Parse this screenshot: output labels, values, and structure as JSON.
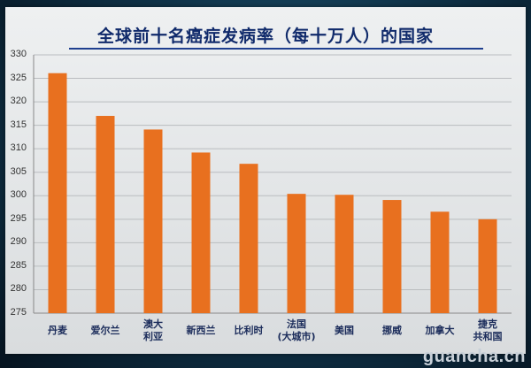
{
  "chart_data": {
    "type": "bar",
    "title": "全球前十名癌症发病率（每十万人）的国家",
    "categories": [
      "丹麦",
      "爱尔兰",
      "澳大\n利亚",
      "新西兰",
      "比利时",
      "法国\n(大城市)",
      "美国",
      "挪威",
      "加拿大",
      "捷克\n共和国"
    ],
    "values": [
      326.1,
      317.0,
      314.1,
      309.2,
      306.8,
      300.4,
      300.2,
      299.1,
      296.6,
      295.0
    ],
    "ylim": [
      275,
      330
    ],
    "yticks": [
      275,
      280,
      285,
      290,
      295,
      300,
      305,
      310,
      315,
      320,
      325,
      330
    ],
    "grid": true,
    "bar_color": "#e8701f"
  },
  "watermark": "guancha.cn"
}
